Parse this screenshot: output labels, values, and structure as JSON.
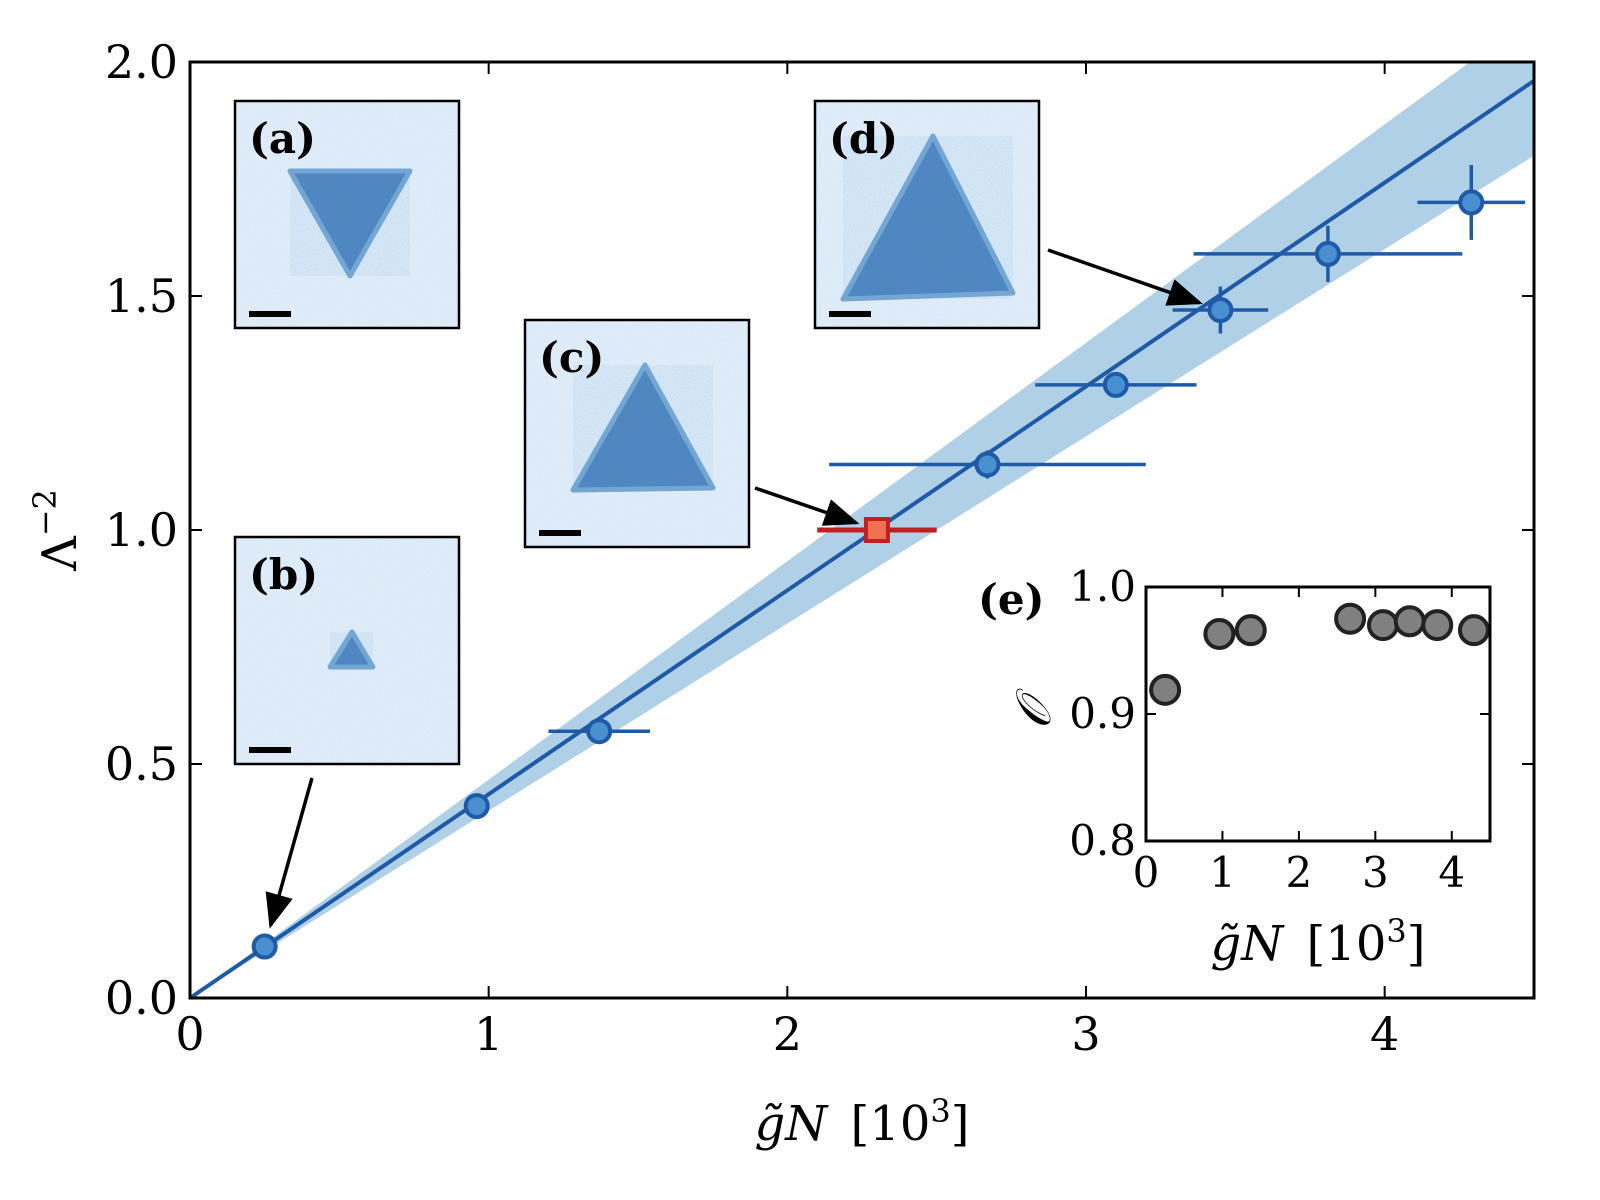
{
  "chart_data": [
    {
      "type": "scatter",
      "xlabel_parts": {
        "symbol": "g̃N",
        "unit": "[10",
        "exp": "3",
        "close": "]"
      },
      "ylabel_parts": {
        "symbol": "Λ",
        "exp": "−2"
      },
      "xlim": [
        0,
        4.5
      ],
      "ylim": [
        0,
        2.0
      ],
      "xticks": [
        "0",
        "1",
        "2",
        "3",
        "4"
      ],
      "yticks": [
        "0.0",
        "0.5",
        "1.0",
        "1.5",
        "2.0"
      ],
      "fit_line": {
        "x": [
          0,
          4.5
        ],
        "y": [
          0,
          1.96
        ]
      },
      "band": {
        "x": [
          0,
          4.5
        ],
        "y_low": [
          0,
          1.8
        ],
        "y_high": [
          0,
          2.1
        ]
      },
      "colors": {
        "series": "#1f5aa6",
        "marker_face": "#4a90d0",
        "band": "#b0d0e8",
        "highlight_edge": "#c0201f",
        "highlight_face": "#f07050",
        "arrow": "#000000"
      },
      "series": [
        {
          "points": [
            {
              "x": 0.25,
              "y": 0.11,
              "xerr": 0,
              "yerr": 0
            },
            {
              "x": 0.96,
              "y": 0.41,
              "xerr": 0,
              "yerr": 0
            },
            {
              "x": 1.37,
              "y": 0.57,
              "xerr": 0.17,
              "yerr": 0
            },
            {
              "x": 2.67,
              "y": 1.14,
              "xerr": 0.53,
              "yerr": 0.03
            },
            {
              "x": 3.1,
              "y": 1.31,
              "xerr": 0.27,
              "yerr": 0
            },
            {
              "x": 3.45,
              "y": 1.47,
              "xerr": 0.16,
              "yerr": 0.05
            },
            {
              "x": 3.81,
              "y": 1.59,
              "xerr": 0.45,
              "yerr": 0.06
            },
            {
              "x": 4.29,
              "y": 1.7,
              "xerr": 0.18,
              "yerr": 0.08
            }
          ]
        },
        {
          "points": [
            {
              "x": 2.3,
              "y": 1.0,
              "xerr": 0.2,
              "yerr": 0
            }
          ]
        }
      ],
      "panels": [
        {
          "label": "(a)",
          "shape": "inverted-triangle",
          "size": "medium",
          "arrow_to": null
        },
        {
          "label": "(b)",
          "shape": "triangle",
          "size": "tiny",
          "arrow_to": {
            "x": 0.25,
            "y": 0.11
          }
        },
        {
          "label": "(c)",
          "shape": "triangle",
          "size": "medium",
          "arrow_to": {
            "x": 2.3,
            "y": 1.0
          }
        },
        {
          "label": "(d)",
          "shape": "triangle",
          "size": "large",
          "arrow_to": {
            "x": 3.45,
            "y": 1.47
          }
        }
      ]
    },
    {
      "type": "scatter",
      "label": "(e)",
      "xlabel_parts": {
        "symbol": "g̃N",
        "unit": "[10",
        "exp": "3",
        "close": "]"
      },
      "ylabel": "𝒪",
      "xlim": [
        0,
        4.5
      ],
      "ylim": [
        0.8,
        1.0
      ],
      "xticks": [
        "0",
        "1",
        "2",
        "3",
        "4"
      ],
      "yticks": [
        "0.8",
        "0.9",
        "1.0"
      ],
      "colors": {
        "marker_face": "#808080",
        "marker_edge": "#222222"
      },
      "x": [
        0.25,
        0.96,
        1.37,
        2.67,
        3.1,
        3.45,
        3.81,
        4.29
      ],
      "y": [
        0.919,
        0.963,
        0.966,
        0.975,
        0.97,
        0.973,
        0.97,
        0.966
      ]
    }
  ]
}
